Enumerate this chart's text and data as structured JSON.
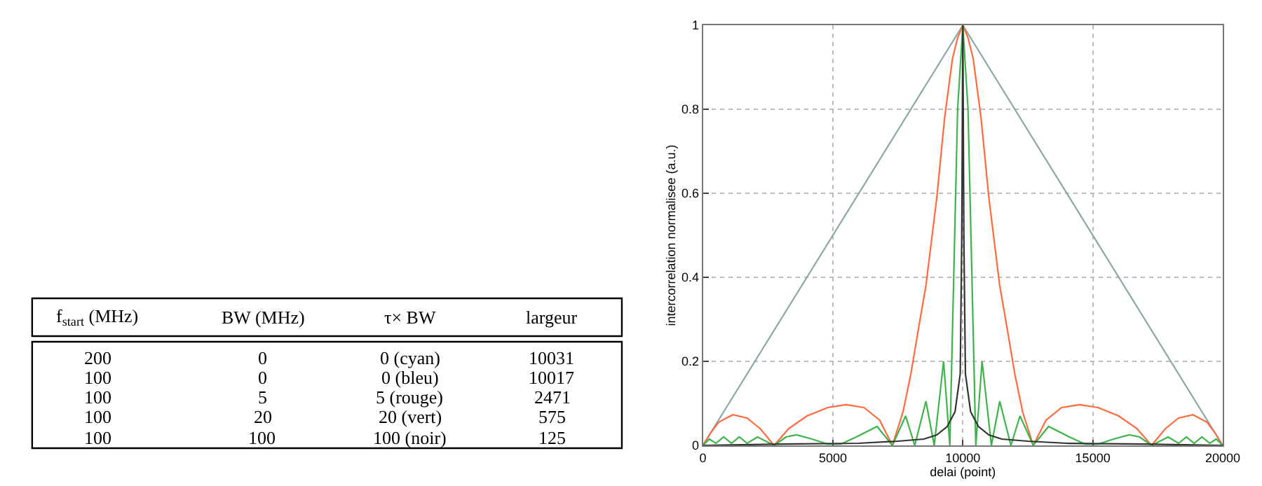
{
  "chart_data": [
    {
      "type": "other",
      "categories": [
        "f$_{start}$ (MHz)",
        "BW (MHz)",
        "τ× BW",
        "largeur"
      ],
      "annotations": [
        "200",
        "0",
        "0 (cyan)",
        "10031",
        "100",
        "0",
        "0 (bleu)",
        "10017",
        "100",
        "5",
        "5 (rouge)",
        "2471",
        "100",
        "20",
        "20 (vert)",
        "575",
        "100",
        "100",
        "100 (noir)",
        "125"
      ]
    },
    {
      "type": "line",
      "xlabel": "delai (point)",
      "ylabel": "intercorrelation normalisee (a.u.)",
      "xlim": [
        0,
        20000
      ],
      "ylim": [
        0,
        1
      ],
      "xticks": [
        0,
        5000,
        10000,
        15000,
        20000
      ],
      "yticks": [
        0,
        0.2,
        0.4,
        0.6,
        0.8,
        1
      ],
      "grid": true,
      "series": [
        {
          "color": "#8aa8a8",
          "x": [
            0,
            10000,
            20000
          ],
          "values": [
            0,
            1,
            0
          ]
        },
        {
          "color": "#ff6a3d",
          "x": [
            0,
            300,
            600,
            1150,
            1700,
            2200,
            2740,
            3300,
            4000,
            4800,
            5500,
            6200,
            6800,
            7290,
            7700,
            8000,
            8300,
            8580,
            9000,
            9300,
            9600,
            9800,
            10000,
            10200,
            10400,
            10700,
            11000,
            11420,
            11700,
            12000,
            12300,
            12710,
            13200,
            13800,
            14500,
            15200,
            16000,
            16700,
            17260,
            17800,
            18300,
            18850,
            19400,
            19700,
            20000
          ],
          "values": [
            0,
            0.03,
            0.055,
            0.073,
            0.065,
            0.04,
            0,
            0.04,
            0.07,
            0.09,
            0.097,
            0.09,
            0.06,
            0,
            0.08,
            0.17,
            0.28,
            0.38,
            0.59,
            0.78,
            0.92,
            0.97,
            1,
            0.97,
            0.92,
            0.78,
            0.59,
            0.38,
            0.28,
            0.17,
            0.08,
            0,
            0.06,
            0.09,
            0.097,
            0.09,
            0.07,
            0.04,
            0,
            0.04,
            0.065,
            0.073,
            0.055,
            0.03,
            0
          ]
        },
        {
          "color": "#3cb44b",
          "x": [
            0,
            250,
            500,
            800,
            1100,
            1400,
            1700,
            2100,
            2740,
            3200,
            3600,
            4200,
            4800,
            5300,
            5900,
            6700,
            7290,
            7800,
            8150,
            8580,
            8900,
            9260,
            9500,
            9650,
            9800,
            10000,
            10200,
            10350,
            10500,
            10740,
            11100,
            11420,
            11850,
            12200,
            12710,
            13300,
            14100,
            14700,
            15200,
            15800,
            16400,
            16800,
            17260,
            17900,
            18300,
            18600,
            18900,
            19200,
            19500,
            19750,
            20000
          ],
          "values": [
            0,
            0.015,
            0.005,
            0.02,
            0.005,
            0.02,
            0.005,
            0.02,
            0,
            0.02,
            0.025,
            0.015,
            0.003,
            0.003,
            0.02,
            0.045,
            0,
            0.07,
            0,
            0.105,
            0,
            0.2,
            0,
            0.4,
            0.8,
            1,
            0.8,
            0.4,
            0,
            0.2,
            0,
            0.105,
            0,
            0.07,
            0,
            0.045,
            0.02,
            0.003,
            0.003,
            0.015,
            0.025,
            0.02,
            0,
            0.02,
            0.005,
            0.02,
            0.005,
            0.02,
            0.005,
            0.015,
            0
          ]
        },
        {
          "color": "#333333",
          "x": [
            0,
            3000,
            6000,
            7500,
            8500,
            9000,
            9400,
            9700,
            9900,
            9960,
            10000,
            10040,
            10100,
            10300,
            10600,
            11000,
            11500,
            12500,
            14000,
            17000,
            20000
          ],
          "values": [
            0,
            0.003,
            0.005,
            0.01,
            0.015,
            0.025,
            0.045,
            0.08,
            0.17,
            0.5,
            1,
            0.5,
            0.17,
            0.08,
            0.045,
            0.025,
            0.015,
            0.01,
            0.005,
            0.003,
            0
          ]
        }
      ]
    }
  ]
}
